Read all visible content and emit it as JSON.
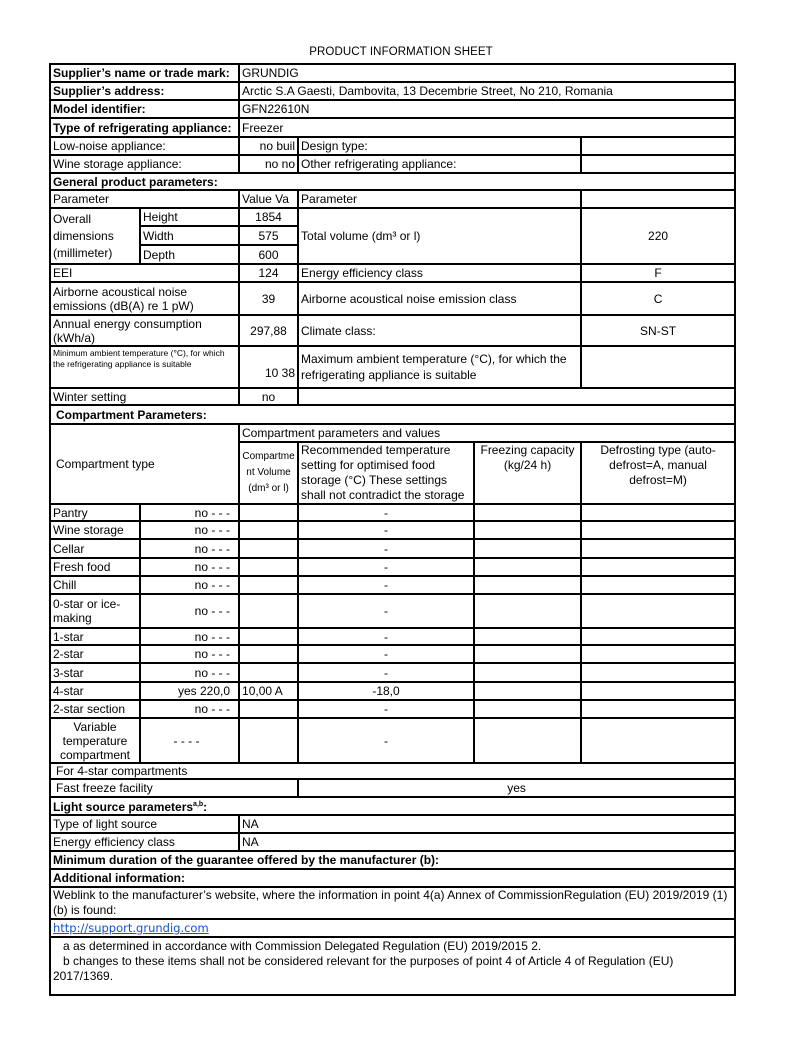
{
  "title": "PRODUCT INFORMATION SHEET",
  "supplier": {
    "name_label": "Supplier’s name or trade mark:",
    "name": "GRUNDIG",
    "address_label": "Supplier’s address:",
    "address": "Arctic S.A  Gaesti, Dambovita, 13 Decembrie Street, No 210, Romania",
    "model_label": "Model identifier:",
    "model": "GFN22610N",
    "type_label": "Type of refrigerating appliance:",
    "type": "Freezer"
  },
  "flags": {
    "low_noise_label": "Low-noise appliance:",
    "low_noise": "no buil",
    "design_type_label": "Design type:",
    "design_type": "",
    "wine_label": "Wine storage appliance:",
    "wine": "no no",
    "other_label": "Other refrigerating appliance:",
    "other": ""
  },
  "general": {
    "heading": "General product parameters:",
    "col_parameter": "Parameter",
    "col_value": "Value   Va",
    "col_parameter2": "Parameter",
    "dimensions_label": "Overall dimensions (millimeter)",
    "height_label": "Height",
    "height": "1854",
    "width_label": "Width",
    "width": "575",
    "depth_label": "Depth",
    "depth": "600",
    "total_volume_label": "Total volume (dm³ or l)",
    "total_volume": "220",
    "eei_label": "EEI",
    "eei": "124",
    "eec_label": "Energy efficiency class",
    "eec": "F",
    "noise_label": "Airborne acoustical noise emissions (dB(A) re 1 pW)",
    "noise": "39",
    "noise_class_label": "Airborne acoustical noise emission class",
    "noise_class": "C",
    "annual_label": "Annual energy consumption (kWh/a)",
    "annual": "297,88",
    "climate_label": "Climate class:",
    "climate": "SN-ST",
    "min_amb_label": "Minimum ambient temperature (°C), for which the refrigerating appliance is suitable",
    "min_amb": "10 38",
    "max_amb_label": "Maximum ambient temperature (°C), for which the refrigerating appliance is suitable",
    "winter_label": "Winter setting",
    "winter": "no"
  },
  "compartments": {
    "heading": "Compartment Parameters:",
    "type_header": "Compartment type",
    "values_header": "Compartment parameters and values",
    "volume_header": "Compartment Volume (dm³ or l)",
    "temp_header": "Recommended temperature setting for optimised food storage (°C) These settings shall not contradict the storage",
    "freezing_header": "Freezing capacity (kg/24 h)",
    "defrost_header": "Defrosting type (auto-defrost=A, manual defrost=M)",
    "rows": [
      {
        "name": "Pantry",
        "present": "no - - -",
        "volume": "",
        "temp": "-"
      },
      {
        "name": "Wine storage",
        "present": "no - - -",
        "volume": "",
        "temp": "-"
      },
      {
        "name": "Cellar",
        "present": "no - - -",
        "volume": "",
        "temp": "-"
      },
      {
        "name": "Fresh food",
        "present": "no - - -",
        "volume": "",
        "temp": "-"
      },
      {
        "name": "Chill",
        "present": "no - - -",
        "volume": "",
        "temp": "-"
      },
      {
        "name": "0-star or ice-making",
        "present": "no - - -",
        "volume": "",
        "temp": "-"
      },
      {
        "name": "1-star",
        "present": "no - - -",
        "volume": "",
        "temp": "-"
      },
      {
        "name": "2-star",
        "present": "no - - -",
        "volume": "",
        "temp": "-"
      },
      {
        "name": "3-star",
        "present": "no - - -",
        "volume": "",
        "temp": "-"
      },
      {
        "name": "4-star",
        "present": "yes 220,0",
        "volume": "10,00 A",
        "temp": "-18,0"
      },
      {
        "name": "2-star section",
        "present": "no - - -",
        "volume": "",
        "temp": "-"
      },
      {
        "name": "Variable temperature compartment",
        "present": "- - - -",
        "volume": "",
        "temp": "-"
      }
    ],
    "four_star_label": "For 4-star compartments",
    "fast_freeze_label": "Fast freeze facility",
    "fast_freeze": "yes"
  },
  "light": {
    "heading": "Light source parameters",
    "heading_sup": "a,b",
    "heading_colon": ":",
    "type_label": "Type of light source",
    "type": "NA",
    "eec_label": "Energy efficiency class",
    "eec": "NA"
  },
  "guarantee_label": "Minimum duration of the guarantee offered by the manufacturer (b):",
  "additional": {
    "heading": "Additional information:",
    "weblink_text": "Weblink to the manufacturer’s website, where the information in point 4(a) Annex of CommissionRegulation (EU) 2019/2019 (1)(b) is found:",
    "url": "http://support.grundig.com",
    "note_a": "a as determined in accordance with Commission Delegated Regulation (EU) 2019/2015 2.",
    "note_b": "b changes to these items shall not be considered relevant for the purposes of point 4 of Article 4 of Regulation (EU) 2017/1369."
  }
}
